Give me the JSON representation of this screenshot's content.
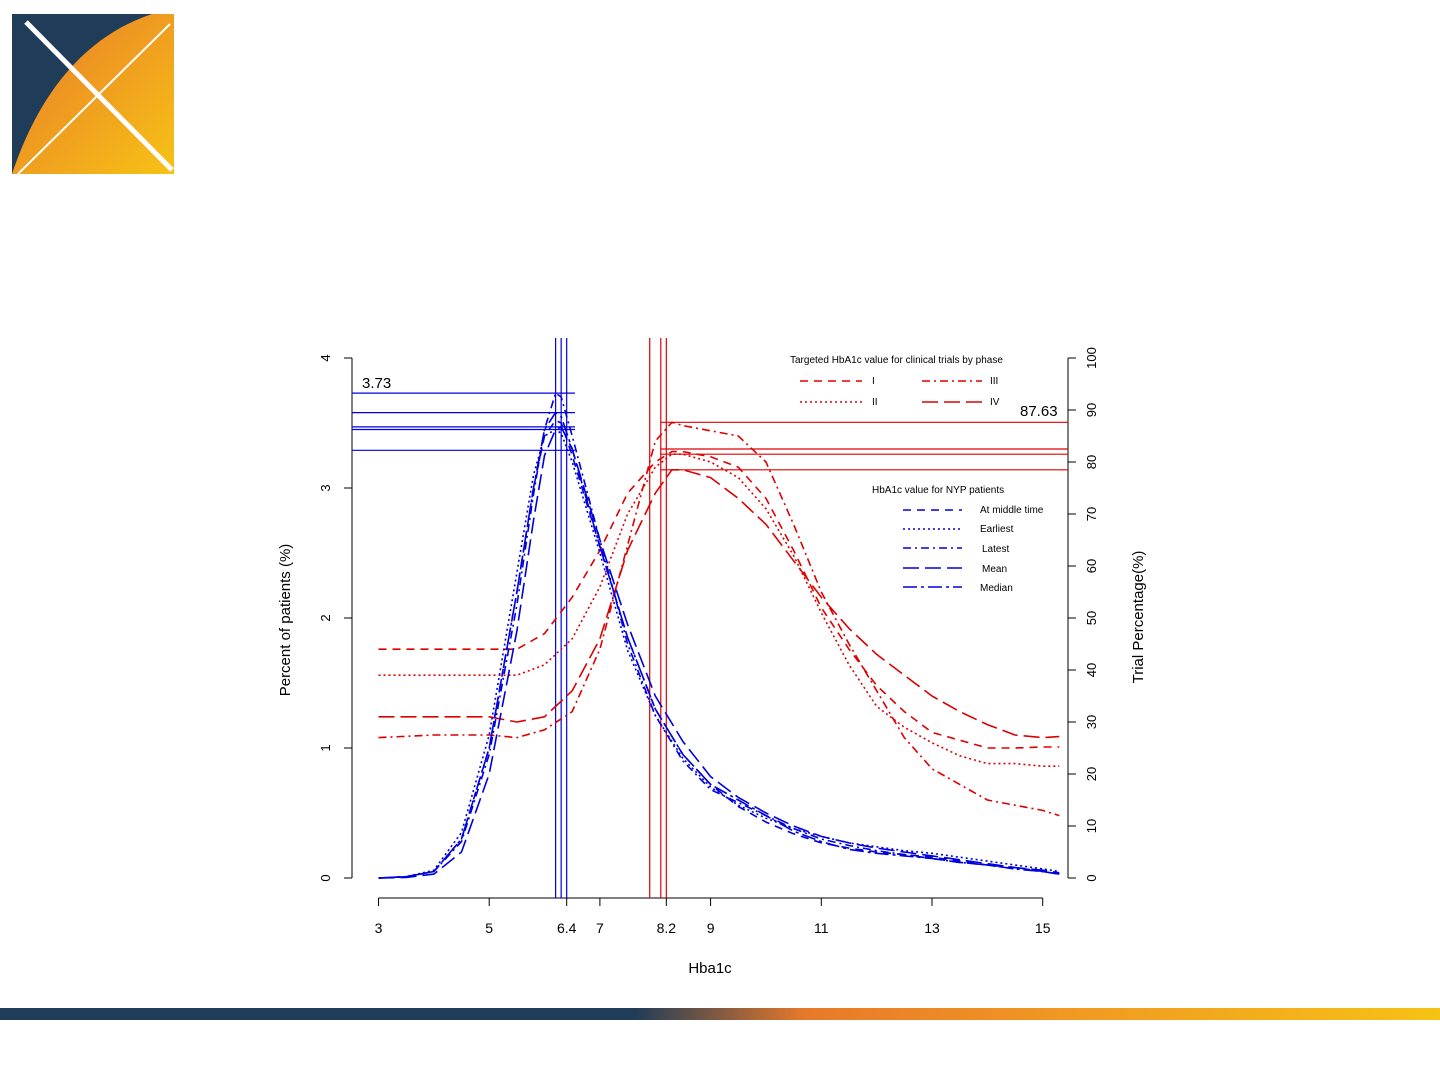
{
  "colors": {
    "brand_navy": "#1f3c58",
    "brand_orange": "#e8792a",
    "brand_yellow": "#f6c215",
    "patients_series": "#0000dd",
    "trials_series": "#dd0000"
  },
  "logo": {
    "icon": "x-logo-icon"
  },
  "chart_data": {
    "type": "line",
    "title": "",
    "xlabel": "Hba1c",
    "ylabel_left": "Percent of patients (%)",
    "ylabel_right": "Trial Percentage(%)",
    "xlim": [
      3,
      15.3
    ],
    "ylim_left": [
      0,
      4
    ],
    "ylim_right": [
      0,
      100
    ],
    "x_ticks": [
      "3",
      "5",
      "6.4",
      "7",
      "8.2",
      "9",
      "11",
      "13",
      "15"
    ],
    "x_tick_values": [
      3,
      5,
      6.4,
      7,
      8.2,
      9,
      11,
      13,
      15
    ],
    "y_left_ticks": [
      "0",
      "1",
      "2",
      "3",
      "4"
    ],
    "y_right_ticks": [
      "0",
      "10",
      "20",
      "30",
      "40",
      "50",
      "60",
      "70",
      "80",
      "90",
      "100"
    ],
    "grid": false,
    "annotations": {
      "left_peak_label": "3.73",
      "right_peak_label": "87.63"
    },
    "legend_trials": {
      "title": "Targeted HbA1c value for clinical trials by phase",
      "placement": "top-right",
      "entries": [
        {
          "label": "I",
          "dash": "8,6"
        },
        {
          "label": "II",
          "dash": "2,3"
        },
        {
          "label": "III",
          "dash": "8,4,2,4"
        },
        {
          "label": "IV",
          "dash": "16,6"
        }
      ]
    },
    "legend_patients": {
      "title": "HbA1c value for NYP patients",
      "placement": "right",
      "entries": [
        {
          "label": "At middle time",
          "dash": "8,6"
        },
        {
          "label": "Earliest",
          "dash": "2,3"
        },
        {
          "label": "Latest",
          "dash": "8,4,2,4"
        },
        {
          "label": "Mean",
          "dash": "16,6"
        },
        {
          "label": "Median",
          "dash": "14,4,3,4"
        }
      ]
    },
    "patient_series": [
      {
        "name": "At middle time",
        "dash": "8,6",
        "x": [
          3,
          3.5,
          4,
          4.5,
          5,
          5.5,
          5.8,
          6.0,
          6.2,
          6.3,
          6.5,
          7,
          7.5,
          8,
          8.5,
          9,
          9.5,
          10,
          10.5,
          11,
          11.5,
          12,
          12.5,
          13,
          13.5,
          14,
          14.5,
          15,
          15.3
        ],
        "y": [
          0,
          0.01,
          0.05,
          0.3,
          1.0,
          2.2,
          3.0,
          3.4,
          3.52,
          3.5,
          3.25,
          2.55,
          1.85,
          1.3,
          0.95,
          0.72,
          0.55,
          0.43,
          0.34,
          0.27,
          0.23,
          0.2,
          0.18,
          0.16,
          0.13,
          0.1,
          0.08,
          0.05,
          0.03
        ]
      },
      {
        "name": "Earliest",
        "dash": "2,3",
        "x": [
          3,
          3.5,
          4,
          4.5,
          5,
          5.5,
          5.8,
          6.0,
          6.2,
          6.3,
          6.5,
          7,
          7.5,
          8,
          8.5,
          9,
          9.5,
          10,
          10.5,
          11,
          11.5,
          12,
          12.5,
          13,
          13.5,
          14,
          14.5,
          15,
          15.3
        ],
        "y": [
          0,
          0.01,
          0.06,
          0.35,
          1.1,
          2.35,
          3.1,
          3.4,
          3.45,
          3.42,
          3.2,
          2.5,
          1.75,
          1.25,
          0.92,
          0.7,
          0.56,
          0.46,
          0.38,
          0.32,
          0.27,
          0.24,
          0.21,
          0.19,
          0.16,
          0.13,
          0.1,
          0.07,
          0.05
        ]
      },
      {
        "name": "Latest",
        "dash": "8,4,2,4",
        "x": [
          3,
          3.5,
          4,
          4.5,
          5,
          5.5,
          5.8,
          6.0,
          6.2,
          6.3,
          6.5,
          7,
          7.5,
          8,
          8.5,
          9,
          9.5,
          10,
          10.5,
          11,
          11.5,
          12,
          12.5,
          13,
          13.5,
          14,
          14.5,
          15,
          15.3
        ],
        "y": [
          0,
          0.01,
          0.05,
          0.28,
          0.95,
          2.1,
          2.95,
          3.45,
          3.73,
          3.7,
          3.4,
          2.6,
          1.8,
          1.25,
          0.9,
          0.68,
          0.58,
          0.48,
          0.38,
          0.3,
          0.25,
          0.21,
          0.18,
          0.15,
          0.12,
          0.1,
          0.07,
          0.05,
          0.03
        ]
      },
      {
        "name": "Mean",
        "dash": "16,6",
        "x": [
          3,
          3.5,
          4,
          4.5,
          5,
          5.5,
          5.8,
          6.0,
          6.2,
          6.3,
          6.5,
          7,
          7.5,
          8,
          8.5,
          9,
          9.5,
          10,
          10.5,
          11,
          11.5,
          12,
          12.5,
          13,
          13.5,
          14,
          14.5,
          15,
          15.3
        ],
        "y": [
          0,
          0.005,
          0.03,
          0.2,
          0.8,
          1.9,
          2.75,
          3.25,
          3.45,
          3.47,
          3.3,
          2.6,
          1.95,
          1.4,
          1.05,
          0.78,
          0.62,
          0.5,
          0.4,
          0.32,
          0.27,
          0.23,
          0.2,
          0.17,
          0.14,
          0.11,
          0.08,
          0.06,
          0.04
        ]
      },
      {
        "name": "Median",
        "dash": "14,4,3,4",
        "x": [
          3,
          3.5,
          4,
          4.5,
          5,
          5.5,
          5.8,
          6.0,
          6.2,
          6.3,
          6.5,
          7,
          7.5,
          8,
          8.5,
          9,
          9.5,
          10,
          10.5,
          11,
          11.5,
          12,
          12.5,
          13,
          13.5,
          14,
          14.5,
          15,
          15.3
        ],
        "y": [
          0,
          0.01,
          0.05,
          0.3,
          1.0,
          2.2,
          3.0,
          3.45,
          3.58,
          3.55,
          3.3,
          2.55,
          1.85,
          1.3,
          0.95,
          0.72,
          0.6,
          0.48,
          0.36,
          0.28,
          0.22,
          0.19,
          0.17,
          0.15,
          0.12,
          0.1,
          0.07,
          0.05,
          0.03
        ]
      }
    ],
    "trial_series": [
      {
        "name": "I",
        "dash": "8,6",
        "x": [
          3,
          4,
          5,
          5.5,
          6,
          6.5,
          7,
          7.5,
          8,
          8.3,
          8.5,
          9,
          9.5,
          10,
          10.5,
          11,
          11.5,
          12,
          12.5,
          13,
          13.5,
          14,
          14.5,
          15,
          15.3
        ],
        "y": [
          44,
          44,
          44,
          44,
          47,
          54,
          63,
          74,
          80,
          82,
          82,
          81,
          79,
          73,
          63,
          52,
          44,
          37,
          32,
          28,
          26.5,
          25,
          25,
          25.2,
          25.2
        ]
      },
      {
        "name": "II",
        "dash": "2,3",
        "x": [
          3,
          4,
          5,
          5.5,
          6,
          6.5,
          7,
          7.5,
          8,
          8.3,
          8.5,
          9,
          9.5,
          10,
          10.5,
          11,
          11.5,
          12,
          12.5,
          13,
          13.5,
          14,
          14.5,
          15,
          15.3
        ],
        "y": [
          39,
          39,
          39,
          39,
          41,
          46,
          56,
          70,
          79,
          81.5,
          81.5,
          80,
          77,
          71,
          62,
          51,
          41,
          33,
          29,
          26,
          23.5,
          22,
          22,
          21.5,
          21.5
        ]
      },
      {
        "name": "III",
        "dash": "8,4,2,4",
        "x": [
          3,
          4,
          5,
          5.5,
          6,
          6.5,
          7,
          7.5,
          8,
          8.3,
          8.5,
          9,
          9.5,
          10,
          10.5,
          11,
          11.5,
          12,
          12.5,
          13,
          13.5,
          14,
          14.5,
          15,
          15.3
        ],
        "y": [
          27,
          27.5,
          27.5,
          27,
          28.5,
          32,
          44,
          64,
          84,
          87.63,
          87,
          86,
          85,
          80,
          68,
          55,
          45,
          36,
          27,
          21,
          18,
          15,
          14,
          13,
          12
        ]
      },
      {
        "name": "IV",
        "dash": "16,6",
        "x": [
          3,
          4,
          5,
          5.5,
          6,
          6.5,
          7,
          7.5,
          8,
          8.3,
          8.5,
          9,
          9.5,
          10,
          10.5,
          11,
          11.5,
          12,
          12.5,
          13,
          13.5,
          14,
          14.5,
          15,
          15.3
        ],
        "y": [
          31,
          31,
          31,
          30,
          31,
          36,
          46,
          63,
          74,
          78.5,
          78.5,
          77,
          73,
          68,
          61,
          54,
          48,
          43,
          39,
          35,
          32,
          29.5,
          27.5,
          27,
          27.2
        ]
      }
    ],
    "vertical_lines_blue_x": [
      6.2,
      6.3,
      6.4
    ],
    "vertical_lines_red_x": [
      7.9,
      8.1,
      8.2
    ],
    "horizontal_lines_blue_y_left": [
      3.73,
      3.58,
      3.47,
      3.45,
      3.29
    ],
    "horizontal_lines_red_y_right": [
      87.63,
      82.5,
      81.5,
      78.5
    ]
  }
}
